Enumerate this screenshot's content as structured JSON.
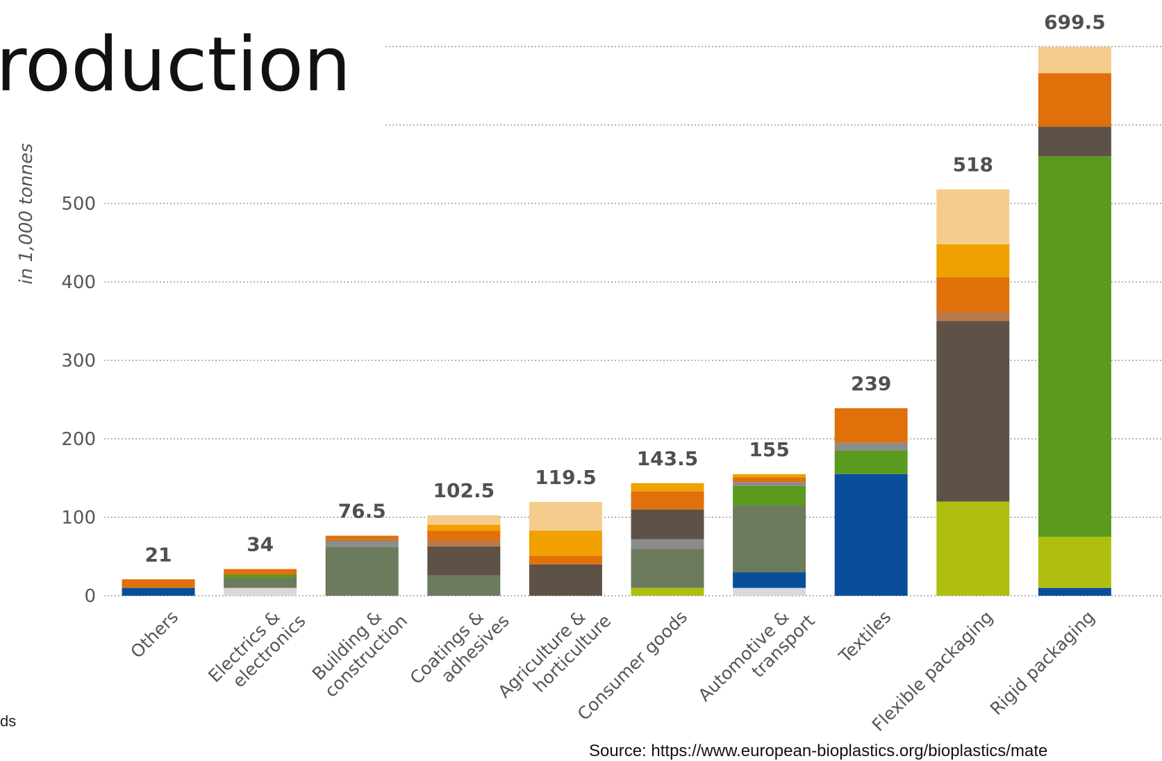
{
  "page": {
    "title_fragment": "roduction",
    "left_fragment": "ds",
    "source": "Source: https://www.european-bioplastics.org/bioplastics/mate"
  },
  "chart_data": {
    "type": "bar",
    "stacked": true,
    "ylabel": "in 1,000 tonnes",
    "ylim": [
      0,
      700
    ],
    "yticks": [
      0,
      100,
      200,
      300,
      400,
      500
    ],
    "grid": true,
    "categories": [
      "Others",
      "Electrics & electronics",
      "Building & construction",
      "Coatings & adhesives",
      "Agriculture & horticulture",
      "Consumer goods",
      "Automotive & transport",
      "Textiles",
      "Flexible packaging",
      "Rigid packaging"
    ],
    "totals": [
      21,
      34,
      76.5,
      102.5,
      119.5,
      143.5,
      155,
      239,
      518,
      699.5
    ],
    "total_labels": [
      "21",
      "34",
      "76.5",
      "102.5",
      "119.5",
      "143.5",
      "155",
      "239",
      "518",
      "699.5"
    ],
    "series": [
      {
        "color": "#d9d9d9",
        "values": [
          0,
          10,
          0,
          0,
          0,
          0,
          10,
          0,
          0,
          0
        ]
      },
      {
        "color": "#0a4e9b",
        "values": [
          10,
          0,
          0,
          0,
          0,
          0,
          20,
          155,
          0,
          10
        ]
      },
      {
        "color": "#aebf10",
        "values": [
          0,
          0,
          0,
          0,
          0,
          10,
          0,
          0,
          120,
          65
        ]
      },
      {
        "color": "#6c7a5e",
        "values": [
          0,
          13,
          62,
          26,
          0,
          50,
          85,
          0,
          0,
          0
        ]
      },
      {
        "color": "#5a9a1e",
        "values": [
          0,
          4,
          0,
          0,
          0,
          0,
          25,
          30,
          0,
          485
        ]
      },
      {
        "color": "#8c8c8c",
        "values": [
          0,
          0,
          7,
          0,
          0,
          12,
          5,
          10,
          0,
          0
        ]
      },
      {
        "color": "#5e5247",
        "values": [
          0,
          0,
          0,
          37,
          40,
          38,
          0,
          0,
          230,
          38
        ]
      },
      {
        "color": "#b87a4a",
        "values": [
          0,
          0,
          3,
          7,
          0,
          0,
          0,
          0,
          12,
          0
        ]
      },
      {
        "color": "#e0700a",
        "values": [
          11,
          7,
          4.5,
          13,
          11,
          23,
          6,
          44,
          44,
          68
        ]
      },
      {
        "color": "#f0a000",
        "values": [
          0,
          0,
          0,
          7.5,
          32,
          10.5,
          4,
          0,
          42,
          0
        ]
      },
      {
        "color": "#f5cc8c",
        "values": [
          0,
          0,
          0,
          12,
          36.5,
          0,
          0,
          0,
          70,
          33.5
        ]
      }
    ]
  }
}
